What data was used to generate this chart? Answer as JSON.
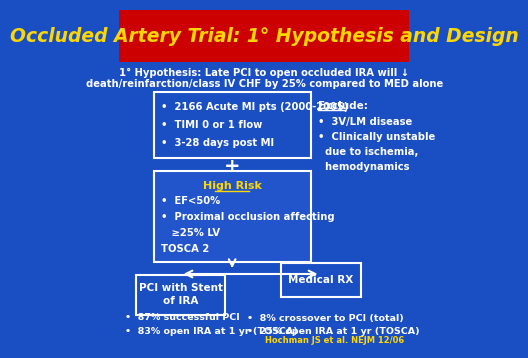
{
  "title": "Occluded Artery Trial: 1° Hypothesis and Design",
  "title_bg": "#cc0000",
  "title_color": "#ffd700",
  "bg_color": "#1a4fc4",
  "subtitle_line1": "1° Hypothesis: Late PCI to open occluded IRA will ↓",
  "subtitle_line2": "death/reinfarction/class IV CHF by 25% compared to MED alone",
  "box1_bullets": [
    "2166 Acute MI pts (2000-2005)",
    "TIMI 0 or 1 flow",
    "3-28 days post MI"
  ],
  "plus_sign": "+",
  "box2_title": "High Risk",
  "exclude_title": "Exclude:",
  "left_box_line1": "PCI with Stent",
  "left_box_line2": "of IRA",
  "right_box": "Medical RX",
  "left_bullets": [
    "87% successful PCI",
    "83% open IRA at 1 yr (TOSCA)"
  ],
  "right_bullets": [
    "8% crossover to PCI (total)",
    "25% open IRA at 1 yr (TOSCA)"
  ],
  "citation": "Hochman JS et al. NEJM 12/06",
  "box_border": "#ffffff",
  "box2_bg": "#2255cc",
  "text_white": "#ffffff",
  "text_yellow": "#ffd700"
}
